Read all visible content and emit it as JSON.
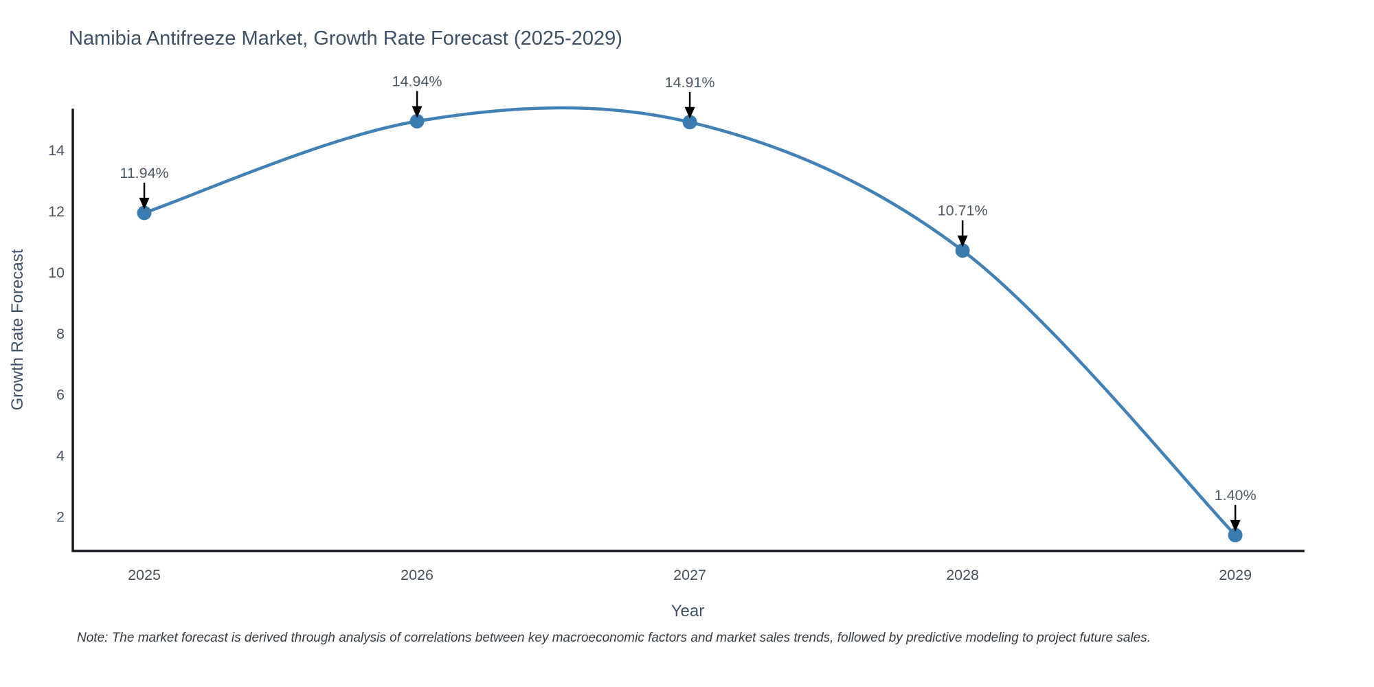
{
  "chart_data": {
    "type": "line",
    "title": "Namibia Antifreeze Market, Growth Rate Forecast (2025-2029)",
    "xlabel": "Year",
    "ylabel": "Growth Rate Forecast",
    "x": [
      2025,
      2026,
      2027,
      2028,
      2029
    ],
    "series": [
      {
        "name": "Growth Rate Forecast",
        "values": [
          11.94,
          14.94,
          14.91,
          10.71,
          1.4
        ],
        "point_labels": [
          "11.94%",
          "14.94%",
          "14.91%",
          "10.71%",
          "1.40%"
        ]
      }
    ],
    "line_shape": "spline",
    "markers": true,
    "grid": false,
    "legend": "none",
    "y_ticks": [
      2,
      4,
      6,
      8,
      10,
      12,
      14
    ],
    "x_tick_labels": [
      "2025",
      "2026",
      "2027",
      "2028",
      "2029"
    ],
    "xlim": [
      2024.738,
      2029.249
    ],
    "ylim": [
      0.88,
      15.31
    ],
    "note": "Note: The market forecast is derived through analysis of correlations between key macroeconomic factors and market sales trends, followed by predictive modeling to project future sales.",
    "colors": {
      "line": "#4181b5",
      "marker": "#3a7bb0",
      "annotation_text": "#4d5965",
      "annotation_arrow": "#000000",
      "axis_line": "#14181c",
      "tick_text": "#47525f",
      "title_text": "#3e5166",
      "background": "#ffffff"
    }
  }
}
